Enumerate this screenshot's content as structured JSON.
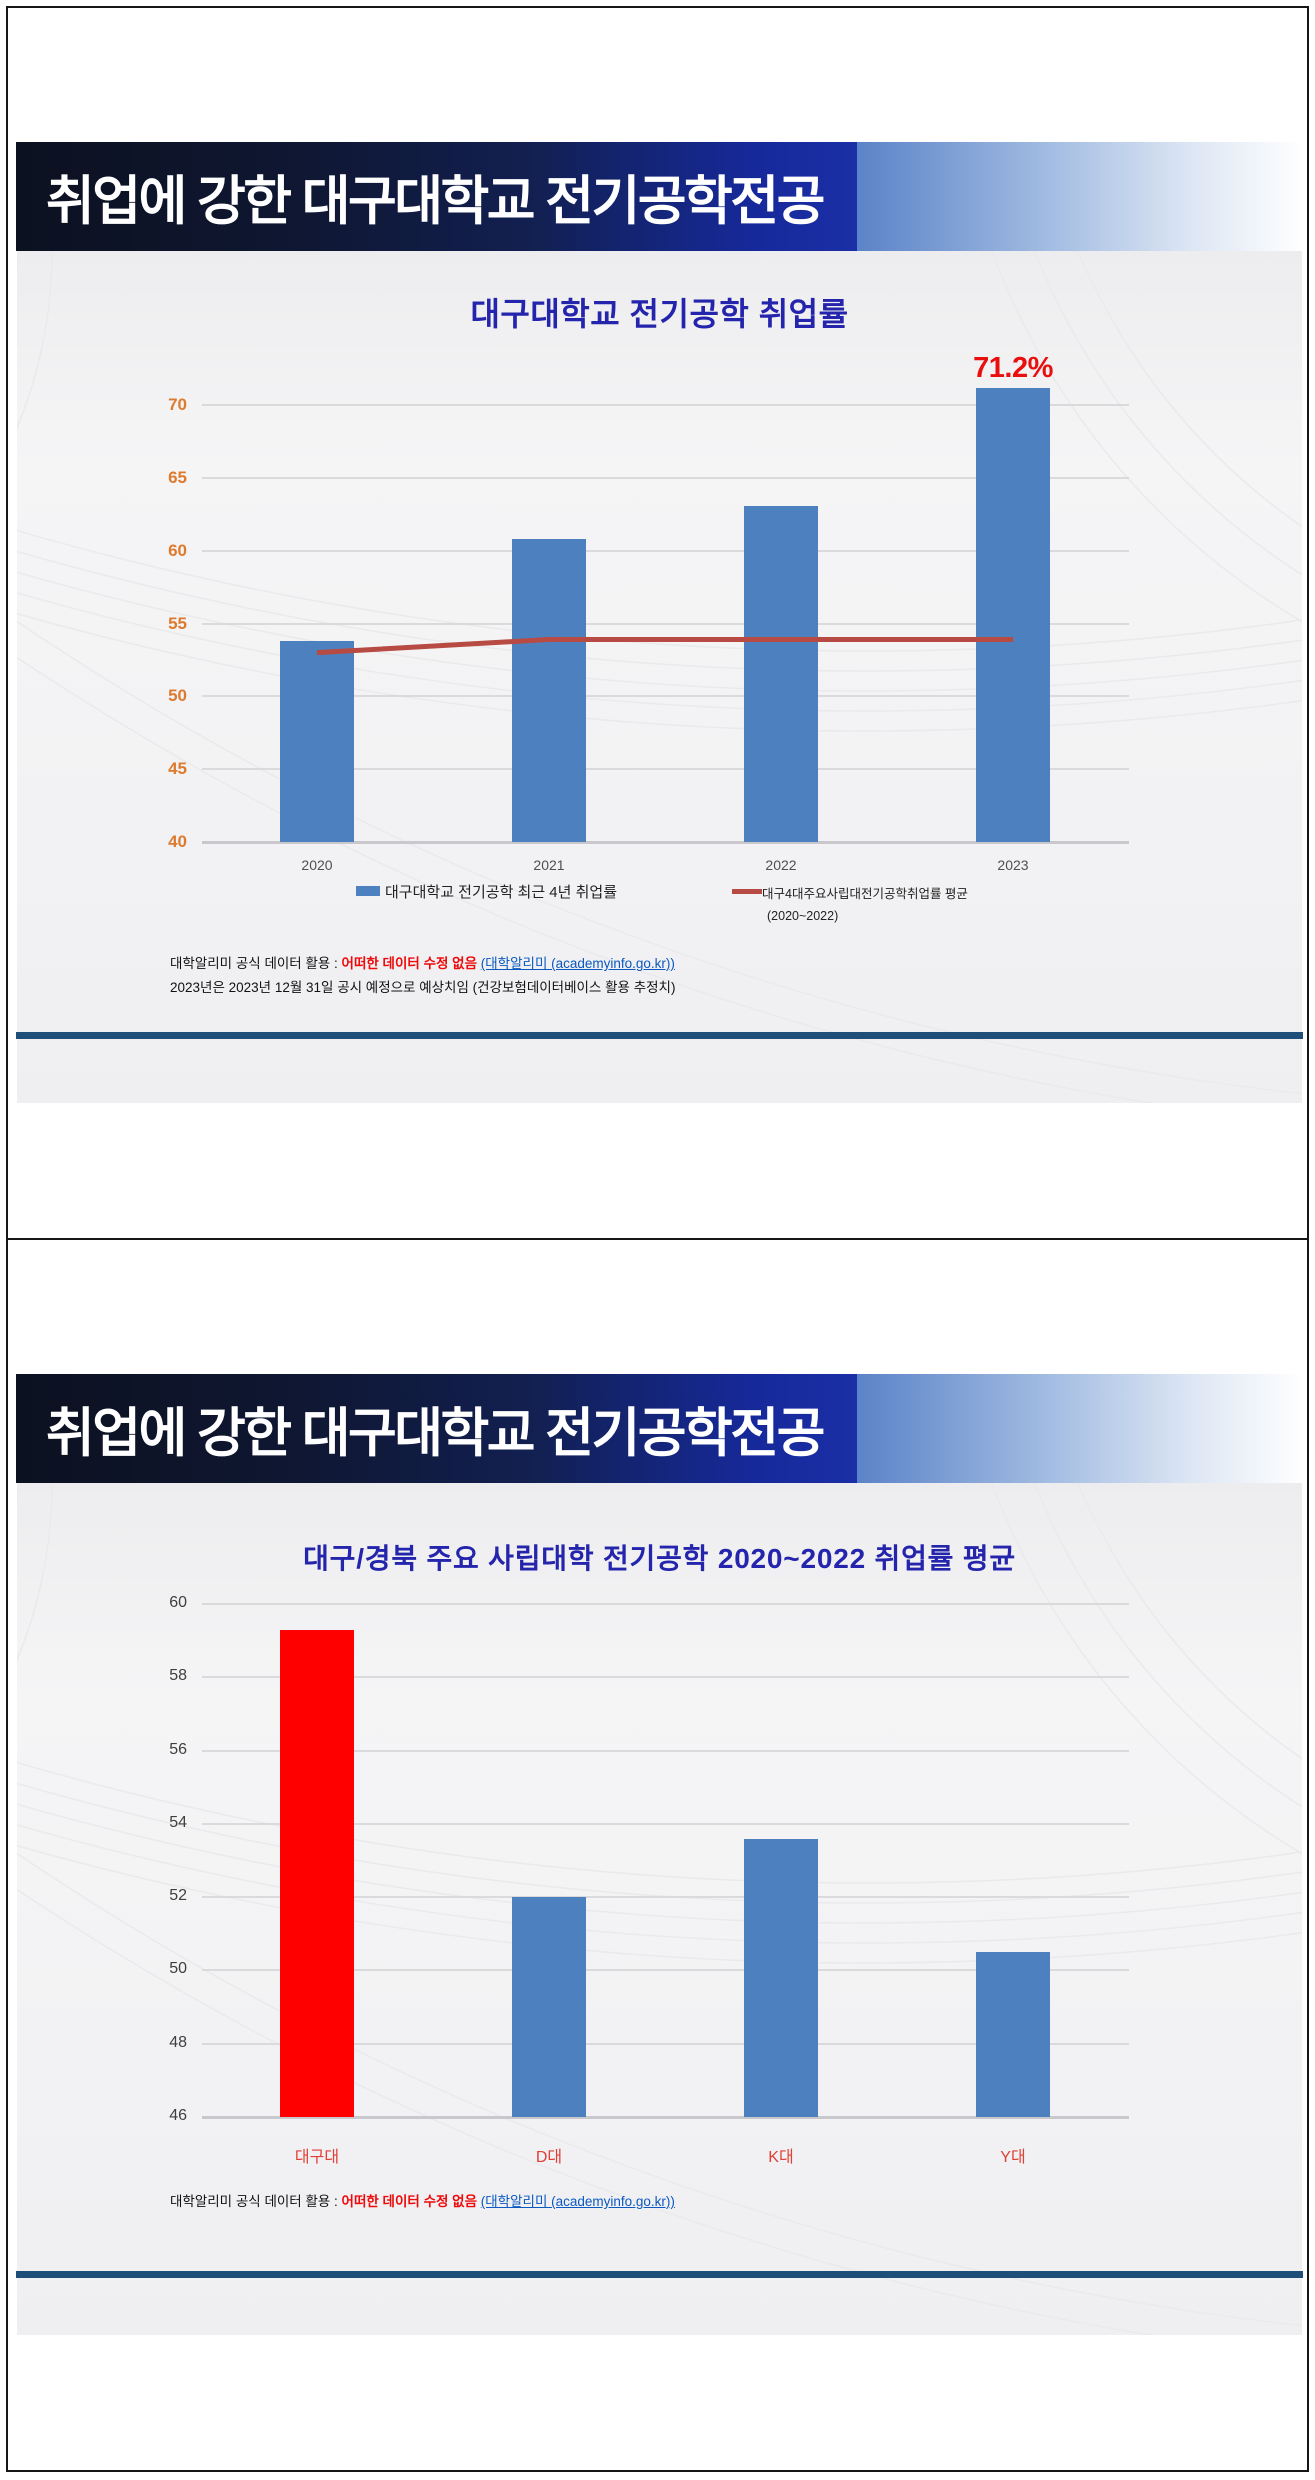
{
  "slides": [
    {
      "header_title": "취업에 강한 대구대학교 전기공학전공",
      "footer_lines": [
        [
          {
            "text": "대학알리미 공식 데이터 활용 : ",
            "style": "plain"
          },
          {
            "text": "어떠한 데이터 수정 없음",
            "style": "red"
          },
          {
            "text": " ",
            "style": "plain"
          },
          {
            "text": "(대학알리미 (academyinfo.go.kr))",
            "style": "link"
          }
        ],
        [
          {
            "text": "2023년은 2023년 12월 31일 공시 예정으로 예상치임 (건강보험데이터베이스 활용 추정치)",
            "style": "plain"
          }
        ]
      ]
    },
    {
      "header_title": "취업에 강한 대구대학교 전기공학전공",
      "footer_lines": [
        [
          {
            "text": "대학알리미 공식 데이터 활용 : ",
            "style": "plain"
          },
          {
            "text": "어떠한 데이터 수정 없음",
            "style": "red"
          },
          {
            "text": " ",
            "style": "plain"
          },
          {
            "text": "(대학알리미 (academyinfo.go.kr))",
            "style": "link"
          }
        ]
      ]
    }
  ],
  "chart_data": [
    {
      "type": "bar",
      "title": "대구대학교 전기공학 취업률",
      "categories": [
        "2020",
        "2021",
        "2022",
        "2023"
      ],
      "series": [
        {
          "name": "대구대학교 전기공학 최근 4년 취업률",
          "type": "bar",
          "color": "#4d80be",
          "values": [
            53.8,
            60.8,
            63.1,
            71.2
          ]
        },
        {
          "name": "대구4대주요사립대전기공학취업률 평균",
          "name_sub": "(2020~2022)",
          "type": "line",
          "color": "#b74a42",
          "values": [
            53.0,
            53.9,
            53.9,
            53.9
          ]
        }
      ],
      "annotation": {
        "text": "71.2%",
        "index": 3,
        "color": "#e90f0f"
      },
      "ylim": [
        40,
        70
      ],
      "ytick_step": 5,
      "tick_color": "#dd7a2e",
      "category_color": "#4f4f4f",
      "grid": true,
      "legend_position": "bottom"
    },
    {
      "type": "bar",
      "title": "대구/경북 주요 사립대학  전기공학 2020~2022 취업률 평균",
      "categories": [
        "대구대",
        "D대",
        "K대",
        "Y대"
      ],
      "series": [
        {
          "name": "취업률 평균",
          "type": "bar",
          "color": "#4d80be",
          "colors": [
            "#fe0000",
            "#4d80be",
            "#4d80be",
            "#4d80be"
          ],
          "values": [
            59.3,
            52.0,
            53.6,
            50.5
          ]
        }
      ],
      "ylim": [
        46,
        60
      ],
      "ytick_step": 2,
      "tick_color": "#3f3f3f",
      "category_color": "#e04036",
      "grid": true,
      "legend_position": "none"
    }
  ]
}
